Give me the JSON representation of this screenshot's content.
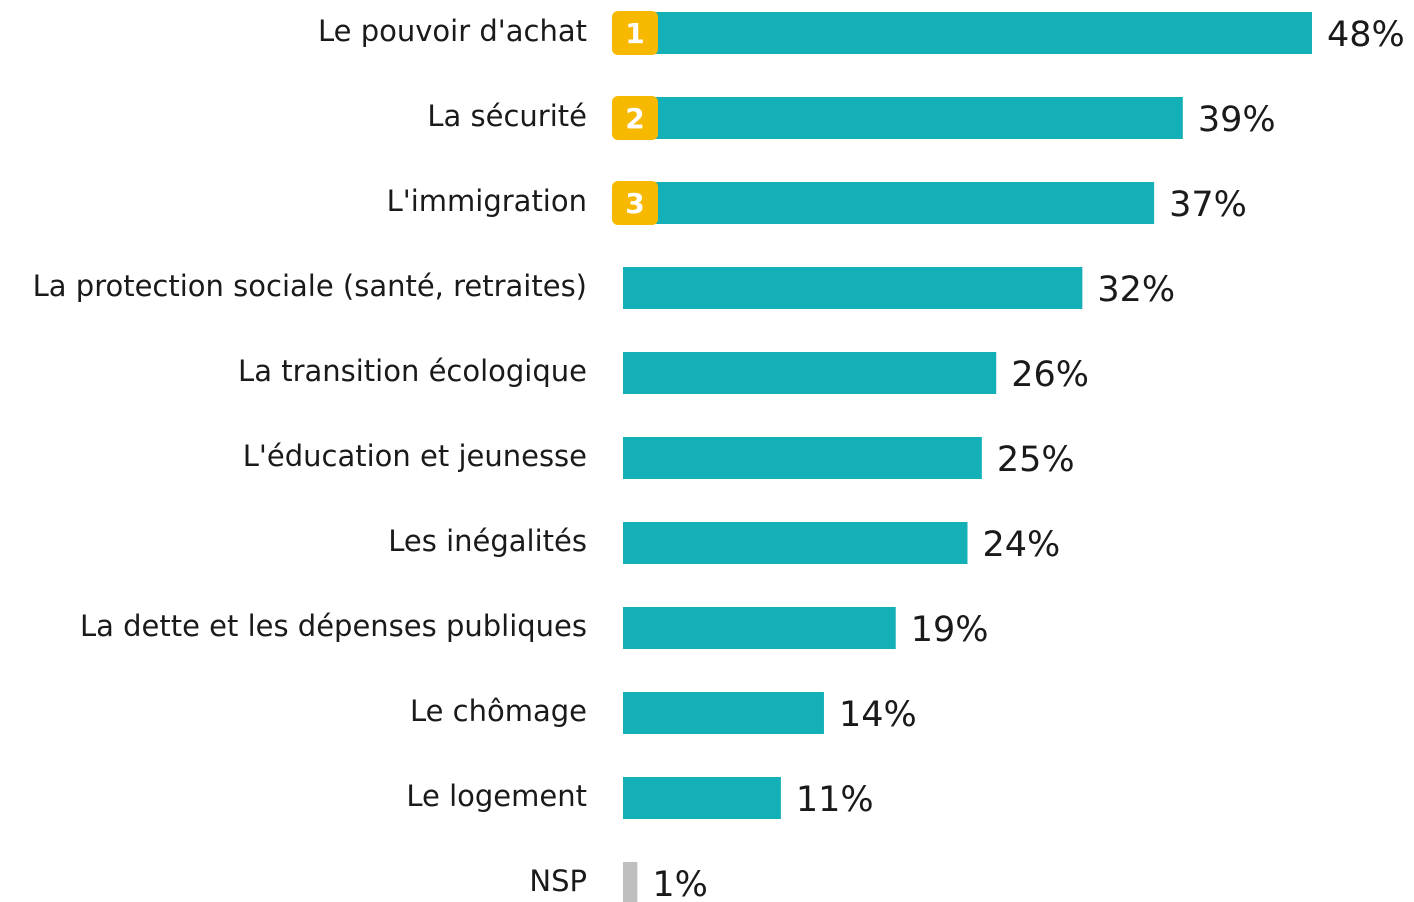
{
  "chart_data": {
    "type": "bar",
    "orientation": "horizontal",
    "categories": [
      "Le pouvoir d'achat",
      "La sécurité",
      "L'immigration",
      "La protection sociale (santé, retraites)",
      "La transition écologique",
      "L'éducation et jeunesse",
      "Les inégalités",
      "La dette et les dépenses publiques",
      "Le chômage",
      "Le logement",
      "NSP"
    ],
    "values": [
      48,
      39,
      37,
      32,
      26,
      25,
      24,
      19,
      14,
      11,
      1
    ],
    "value_labels": [
      "48%",
      "39%",
      "37%",
      "32%",
      "26%",
      "25%",
      "24%",
      "19%",
      "14%",
      "11%",
      "1%"
    ],
    "colors": [
      "#14b0b8",
      "#14b0b8",
      "#14b0b8",
      "#14b0b8",
      "#14b0b8",
      "#14b0b8",
      "#14b0b8",
      "#14b0b8",
      "#14b0b8",
      "#14b0b8",
      "#bfbfbf"
    ],
    "badges": [
      "1",
      "2",
      "3"
    ],
    "badge_color": "#f7b900"
  }
}
